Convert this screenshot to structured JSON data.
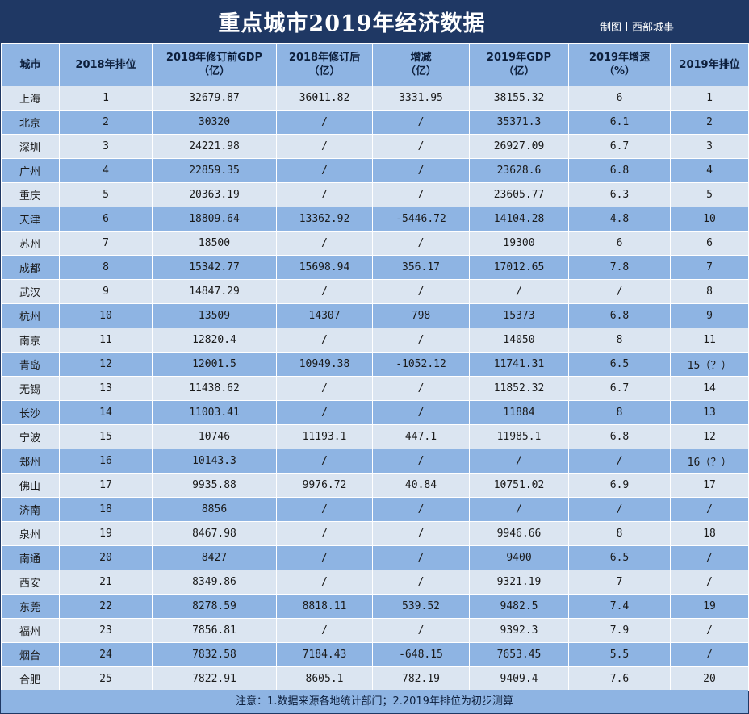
{
  "title": "重点城市2019年经济数据",
  "credit": "制图丨西部城事",
  "headers": [
    {
      "line1": "城市",
      "line2": ""
    },
    {
      "line1": "2018年排位",
      "line2": ""
    },
    {
      "line1": "2018年修订前GDP",
      "line2": "（亿）"
    },
    {
      "line1": "2018年修订后",
      "line2": "（亿）"
    },
    {
      "line1": "增减",
      "line2": "（亿）"
    },
    {
      "line1": "2019年GDP",
      "line2": "（亿）"
    },
    {
      "line1": "2019年增速",
      "line2": "（%）"
    },
    {
      "line1": "2019年排位",
      "line2": ""
    }
  ],
  "rows": [
    [
      "上海",
      "1",
      "32679.87",
      "36011.82",
      "3331.95",
      "38155.32",
      "6",
      "1"
    ],
    [
      "北京",
      "2",
      "30320",
      "/",
      "/",
      "35371.3",
      "6.1",
      "2"
    ],
    [
      "深圳",
      "3",
      "24221.98",
      "/",
      "/",
      "26927.09",
      "6.7",
      "3"
    ],
    [
      "广州",
      "4",
      "22859.35",
      "/",
      "/",
      "23628.6",
      "6.8",
      "4"
    ],
    [
      "重庆",
      "5",
      "20363.19",
      "/",
      "/",
      "23605.77",
      "6.3",
      "5"
    ],
    [
      "天津",
      "6",
      "18809.64",
      "13362.92",
      "-5446.72",
      "14104.28",
      "4.8",
      "10"
    ],
    [
      "苏州",
      "7",
      "18500",
      "/",
      "/",
      "19300",
      "6",
      "6"
    ],
    [
      "成都",
      "8",
      "15342.77",
      "15698.94",
      "356.17",
      "17012.65",
      "7.8",
      "7"
    ],
    [
      "武汉",
      "9",
      "14847.29",
      "/",
      "/",
      "/",
      "/",
      "8"
    ],
    [
      "杭州",
      "10",
      "13509",
      "14307",
      "798",
      "15373",
      "6.8",
      "9"
    ],
    [
      "南京",
      "11",
      "12820.4",
      "/",
      "/",
      "14050",
      "8",
      "11"
    ],
    [
      "青岛",
      "12",
      "12001.5",
      "10949.38",
      "-1052.12",
      "11741.31",
      "6.5",
      "15（？）"
    ],
    [
      "无锡",
      "13",
      "11438.62",
      "/",
      "/",
      "11852.32",
      "6.7",
      "14"
    ],
    [
      "长沙",
      "14",
      "11003.41",
      "/",
      "/",
      "11884",
      "8",
      "13"
    ],
    [
      "宁波",
      "15",
      "10746",
      "11193.1",
      "447.1",
      "11985.1",
      "6.8",
      "12"
    ],
    [
      "郑州",
      "16",
      "10143.3",
      "/",
      "/",
      "/",
      "/",
      "16（？）"
    ],
    [
      "佛山",
      "17",
      "9935.88",
      "9976.72",
      "40.84",
      "10751.02",
      "6.9",
      "17"
    ],
    [
      "济南",
      "18",
      "8856",
      "/",
      "/",
      "/",
      "/",
      "/"
    ],
    [
      "泉州",
      "19",
      "8467.98",
      "/",
      "/",
      "9946.66",
      "8",
      "18"
    ],
    [
      "南通",
      "20",
      "8427",
      "/",
      "/",
      "9400",
      "6.5",
      "/"
    ],
    [
      "西安",
      "21",
      "8349.86",
      "/",
      "/",
      "9321.19",
      "7",
      "/"
    ],
    [
      "东莞",
      "22",
      "8278.59",
      "8818.11",
      "539.52",
      "9482.5",
      "7.4",
      "19"
    ],
    [
      "福州",
      "23",
      "7856.81",
      "/",
      "/",
      "9392.3",
      "7.9",
      "/"
    ],
    [
      "烟台",
      "24",
      "7832.58",
      "7184.43",
      "-648.15",
      "7653.45",
      "5.5",
      "/"
    ],
    [
      "合肥",
      "25",
      "7822.91",
      "8605.1",
      "782.19",
      "9409.4",
      "7.6",
      "20"
    ]
  ],
  "footnote": "注意：1.数据来源各地统计部门；2.2019年排位为初步测算",
  "colors": {
    "title_bg": "#1f3864",
    "header_bg": "#8eb4e3",
    "row_light": "#dbe5f1",
    "row_dark": "#8eb4e3"
  }
}
